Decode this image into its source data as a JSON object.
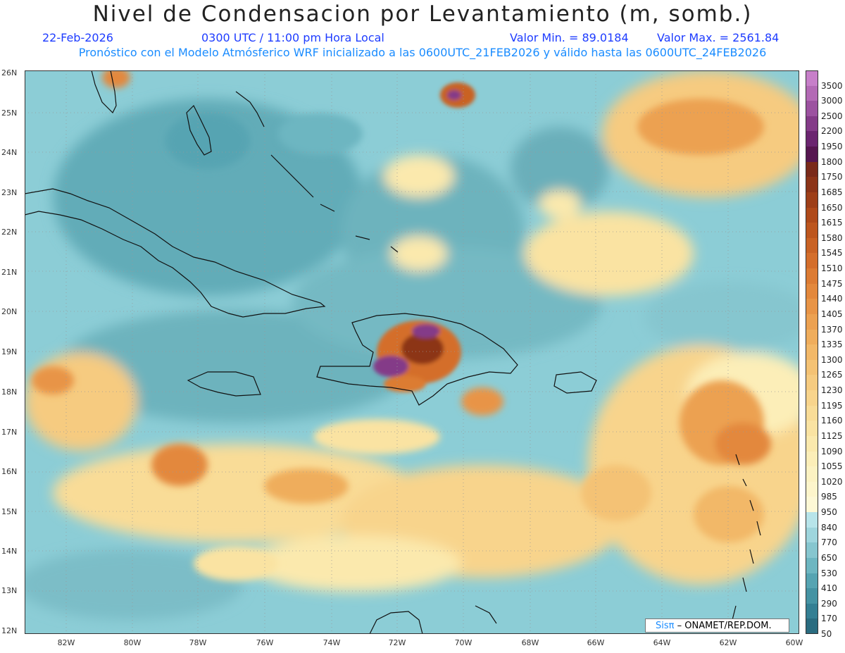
{
  "title": "Nivel de Condensacion por Levantamiento (m, somb.)",
  "date": "22-Feb-2026",
  "time": "0300 UTC / 11:00 pm Hora Local",
  "valmin_label": "Valor Min. = 89.0184",
  "valmax_label": "Valor Max. = 2561.84",
  "subtitle": "Pronóstico con el Modelo Atmósferico WRF inicializado a las 0600UTC_21FEB2026 y válido hasta las  0600UTC_24FEB2026",
  "lat_labels": [
    "26N",
    "25N",
    "24N",
    "23N",
    "22N",
    "21N",
    "20N",
    "19N",
    "18N",
    "17N",
    "16N",
    "15N",
    "14N",
    "13N",
    "12N"
  ],
  "lon_labels": [
    "82W",
    "80W",
    "78W",
    "76W",
    "74W",
    "72W",
    "70W",
    "68W",
    "66W",
    "64W",
    "62W",
    "60W"
  ],
  "colorbar": {
    "levels": [
      "3500",
      "3000",
      "2500",
      "2200",
      "1950",
      "1800",
      "1750",
      "1685",
      "1650",
      "1615",
      "1580",
      "1545",
      "1510",
      "1475",
      "1440",
      "1405",
      "1370",
      "1335",
      "1300",
      "1265",
      "1230",
      "1195",
      "1160",
      "1125",
      "1090",
      "1055",
      "1020",
      "985",
      "950",
      "840",
      "770",
      "650",
      "530",
      "410",
      "290",
      "170",
      "50"
    ],
    "colors": [
      "#c77fc9",
      "#b36ab5",
      "#9c52a0",
      "#843b88",
      "#6b2570",
      "#561650",
      "#7a2a1a",
      "#8c3418",
      "#9e3f18",
      "#af4a1a",
      "#bd561e",
      "#c96224",
      "#d46e2b",
      "#dc7b33",
      "#e3883c",
      "#e89446",
      "#eca151",
      "#efad5c",
      "#f2b868",
      "#f4c274",
      "#f6cb80",
      "#f8d48c",
      "#f9dc97",
      "#fae3a2",
      "#fbe9ad",
      "#fceeb8",
      "#fcf2c2",
      "#fdf5cb",
      "#fdf8d5",
      "#b7e4ea",
      "#9ed5dd",
      "#86c6cf",
      "#6db6c1",
      "#56a4b2",
      "#4593a3",
      "#347f93",
      "#2a6c80"
    ]
  },
  "credit_sis": "Sisπ",
  "credit_rest": " – ONAMET/REP.DOM."
}
